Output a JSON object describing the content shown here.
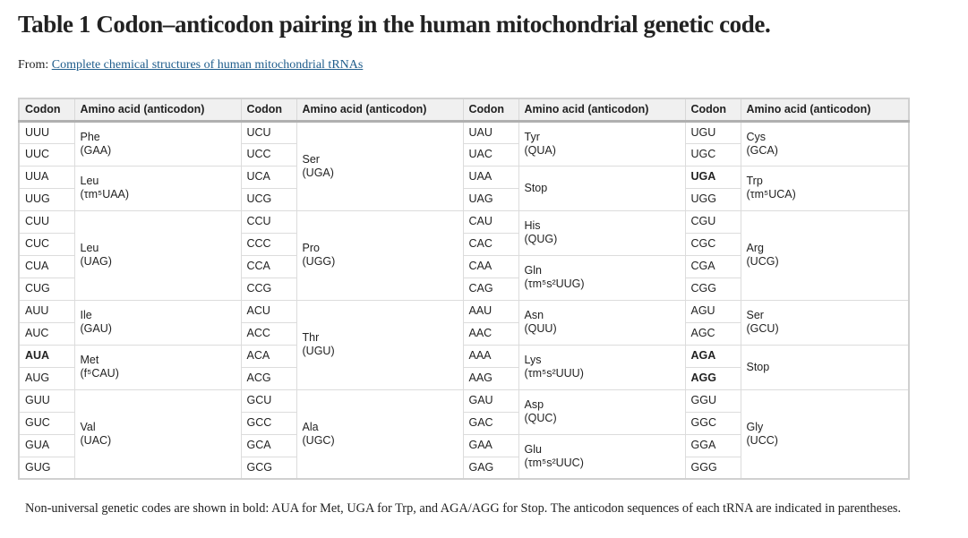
{
  "title": "Table 1 Codon–anticodon pairing in the human mitochondrial genetic code.",
  "from_label": "From:",
  "from_link": "Complete chemical structures of human mitochondrial tRNAs",
  "headers": [
    "Codon",
    "Amino acid (anticodon)",
    "Codon",
    "Amino acid (anticodon)",
    "Codon",
    "Amino acid (anticodon)",
    "Codon",
    "Amino acid (anticodon)"
  ],
  "groups": [
    {
      "columns": [
        {
          "codons": [
            {
              "t": "UUU"
            },
            {
              "t": "UUC"
            },
            {
              "t": "UUA"
            },
            {
              "t": "UUG"
            }
          ],
          "aas": [
            {
              "name": "Phe",
              "anti": "(GAA)",
              "span": 2
            },
            {
              "name": "Leu",
              "anti": "(τm⁵UAA)",
              "span": 2
            }
          ]
        },
        {
          "codons": [
            {
              "t": "UCU"
            },
            {
              "t": "UCC"
            },
            {
              "t": "UCA"
            },
            {
              "t": "UCG"
            }
          ],
          "aas": [
            {
              "name": "Ser",
              "anti": "(UGA)",
              "span": 4
            }
          ]
        },
        {
          "codons": [
            {
              "t": "UAU"
            },
            {
              "t": "UAC"
            },
            {
              "t": "UAA"
            },
            {
              "t": "UAG"
            }
          ],
          "aas": [
            {
              "name": "Tyr",
              "anti": "(QUA)",
              "span": 2
            },
            {
              "name": "Stop",
              "anti": "",
              "span": 2
            }
          ]
        },
        {
          "codons": [
            {
              "t": "UGU"
            },
            {
              "t": "UGC"
            },
            {
              "t": "UGA",
              "b": true
            },
            {
              "t": "UGG"
            }
          ],
          "aas": [
            {
              "name": "Cys",
              "anti": "(GCA)",
              "span": 2
            },
            {
              "name": "Trp",
              "anti": "(τm⁵UCA)",
              "span": 2
            }
          ]
        }
      ]
    },
    {
      "columns": [
        {
          "codons": [
            {
              "t": "CUU"
            },
            {
              "t": "CUC"
            },
            {
              "t": "CUA"
            },
            {
              "t": "CUG"
            }
          ],
          "aas": [
            {
              "name": "Leu",
              "anti": "(UAG)",
              "span": 4
            }
          ]
        },
        {
          "codons": [
            {
              "t": "CCU"
            },
            {
              "t": "CCC"
            },
            {
              "t": "CCA"
            },
            {
              "t": "CCG"
            }
          ],
          "aas": [
            {
              "name": "Pro",
              "anti": "(UGG)",
              "span": 4
            }
          ]
        },
        {
          "codons": [
            {
              "t": "CAU"
            },
            {
              "t": "CAC"
            },
            {
              "t": "CAA"
            },
            {
              "t": "CAG"
            }
          ],
          "aas": [
            {
              "name": "His",
              "anti": "(QUG)",
              "span": 2
            },
            {
              "name": "Gln",
              "anti": "(τm⁵s²UUG)",
              "span": 2
            }
          ]
        },
        {
          "codons": [
            {
              "t": "CGU"
            },
            {
              "t": "CGC"
            },
            {
              "t": "CGA"
            },
            {
              "t": "CGG"
            }
          ],
          "aas": [
            {
              "name": "Arg",
              "anti": "(UCG)",
              "span": 4
            }
          ]
        }
      ]
    },
    {
      "columns": [
        {
          "codons": [
            {
              "t": "AUU"
            },
            {
              "t": "AUC"
            },
            {
              "t": "AUA",
              "b": true
            },
            {
              "t": "AUG"
            }
          ],
          "aas": [
            {
              "name": "Ile",
              "anti": "(GAU)",
              "span": 2
            },
            {
              "name": "Met",
              "anti": "(f⁵CAU)",
              "span": 2
            }
          ]
        },
        {
          "codons": [
            {
              "t": "ACU"
            },
            {
              "t": "ACC"
            },
            {
              "t": "ACA"
            },
            {
              "t": "ACG"
            }
          ],
          "aas": [
            {
              "name": "Thr",
              "anti": "(UGU)",
              "span": 4
            }
          ]
        },
        {
          "codons": [
            {
              "t": "AAU"
            },
            {
              "t": "AAC"
            },
            {
              "t": "AAA"
            },
            {
              "t": "AAG"
            }
          ],
          "aas": [
            {
              "name": "Asn",
              "anti": "(QUU)",
              "span": 2
            },
            {
              "name": "Lys",
              "anti": "(τm⁵s²UUU)",
              "span": 2
            }
          ]
        },
        {
          "codons": [
            {
              "t": "AGU"
            },
            {
              "t": "AGC"
            },
            {
              "t": "AGA",
              "b": true
            },
            {
              "t": "AGG",
              "b": true
            }
          ],
          "aas": [
            {
              "name": "Ser",
              "anti": "(GCU)",
              "span": 2
            },
            {
              "name": "Stop",
              "anti": "",
              "span": 2
            }
          ]
        }
      ]
    },
    {
      "columns": [
        {
          "codons": [
            {
              "t": "GUU"
            },
            {
              "t": "GUC"
            },
            {
              "t": "GUA"
            },
            {
              "t": "GUG"
            }
          ],
          "aas": [
            {
              "name": "Val",
              "anti": "(UAC)",
              "span": 4
            }
          ]
        },
        {
          "codons": [
            {
              "t": "GCU"
            },
            {
              "t": "GCC"
            },
            {
              "t": "GCA"
            },
            {
              "t": "GCG"
            }
          ],
          "aas": [
            {
              "name": "Ala",
              "anti": "(UGC)",
              "span": 4
            }
          ]
        },
        {
          "codons": [
            {
              "t": "GAU"
            },
            {
              "t": "GAC"
            },
            {
              "t": "GAA"
            },
            {
              "t": "GAG"
            }
          ],
          "aas": [
            {
              "name": "Asp",
              "anti": "(QUC)",
              "span": 2
            },
            {
              "name": "Glu",
              "anti": "(τm⁵s²UUC)",
              "span": 2
            }
          ]
        },
        {
          "codons": [
            {
              "t": "GGU"
            },
            {
              "t": "GGC"
            },
            {
              "t": "GGA"
            },
            {
              "t": "GGG"
            }
          ],
          "aas": [
            {
              "name": "Gly",
              "anti": "(UCC)",
              "span": 4
            }
          ]
        }
      ]
    }
  ],
  "footnote": "Non-universal genetic codes are shown in bold: AUA for Met, UGA for Trp, and AGA/AGG for Stop. The anticodon sequences of each tRNA are indicated in parentheses.",
  "colors": {
    "link": "#1f5d8c",
    "header_bg": "#f0f0f0",
    "border": "#dcdcdc"
  }
}
